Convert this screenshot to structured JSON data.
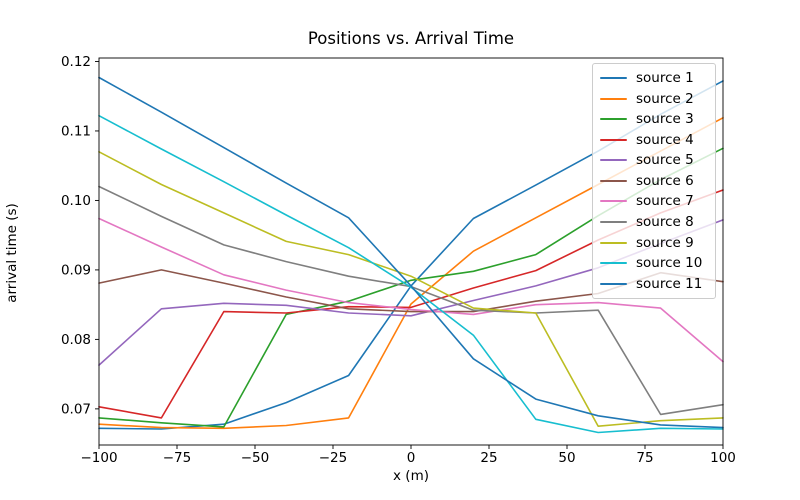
{
  "figure": {
    "title": "Positions vs. Arrival Time",
    "xlabel": "x (m)",
    "ylabel": "arrival time (s)",
    "background": "#ffffff"
  },
  "chart_data": {
    "type": "line",
    "title": "Positions vs. Arrival Time",
    "xlabel": "x (m)",
    "ylabel": "arrival time (s)",
    "grid": false,
    "xlim": [
      -100,
      100
    ],
    "ylim": [
      0.0648,
      0.1205
    ],
    "xticks": {
      "values": [
        -100,
        -75,
        -50,
        -25,
        0,
        25,
        50,
        75,
        100
      ],
      "labels": [
        "−100",
        "−75",
        "−50",
        "−25",
        "0",
        "25",
        "50",
        "75",
        "100"
      ]
    },
    "yticks": {
      "values": [
        0.07,
        0.08,
        0.09,
        0.1,
        0.11,
        0.12
      ],
      "labels": [
        "0.07",
        "0.08",
        "0.09",
        "0.10",
        "0.11",
        "0.12"
      ]
    },
    "legend": {
      "position": "upper right"
    },
    "x": [
      -100,
      -80,
      -60,
      -40,
      -20,
      0,
      20,
      40,
      60,
      80,
      100
    ],
    "series": [
      {
        "name": "source 1",
        "color": "#1f77b4",
        "values": [
          0.0672,
          0.0671,
          0.0678,
          0.0709,
          0.0748,
          0.0877,
          0.0974,
          0.1022,
          0.1071,
          0.1124,
          0.1172
        ]
      },
      {
        "name": "source 2",
        "color": "#ff7f0e",
        "values": [
          0.0678,
          0.0673,
          0.0672,
          0.0676,
          0.0687,
          0.0851,
          0.0927,
          0.0975,
          0.1023,
          0.1071,
          0.1119
        ]
      },
      {
        "name": "source 3",
        "color": "#2ca02c",
        "values": [
          0.0687,
          0.068,
          0.0674,
          0.0836,
          0.0855,
          0.0885,
          0.0898,
          0.0922,
          0.0978,
          0.103,
          0.1075
        ]
      },
      {
        "name": "source 4",
        "color": "#d62728",
        "values": [
          0.0703,
          0.0687,
          0.084,
          0.0838,
          0.0847,
          0.0846,
          0.0874,
          0.0899,
          0.0943,
          0.0982,
          0.1015
        ]
      },
      {
        "name": "source 5",
        "color": "#9467bd",
        "values": [
          0.0763,
          0.0844,
          0.0852,
          0.0849,
          0.0838,
          0.0834,
          0.0856,
          0.0877,
          0.0903,
          0.0938,
          0.0972
        ]
      },
      {
        "name": "source 6",
        "color": "#8c564b",
        "values": [
          0.0881,
          0.09,
          0.0881,
          0.0861,
          0.0844,
          0.084,
          0.084,
          0.0855,
          0.0866,
          0.0896,
          0.0883
        ]
      },
      {
        "name": "source 7",
        "color": "#e377c2",
        "values": [
          0.0974,
          0.0933,
          0.0893,
          0.0871,
          0.0853,
          0.0843,
          0.0836,
          0.085,
          0.0853,
          0.0845,
          0.0768
        ]
      },
      {
        "name": "source 8",
        "color": "#7f7f7f",
        "values": [
          0.102,
          0.0977,
          0.0936,
          0.0912,
          0.0891,
          0.0876,
          0.0842,
          0.0838,
          0.0842,
          0.0692,
          0.0706
        ]
      },
      {
        "name": "source 9",
        "color": "#bcbd22",
        "values": [
          0.107,
          0.1023,
          0.0982,
          0.0941,
          0.0922,
          0.0891,
          0.0845,
          0.0838,
          0.0675,
          0.0683,
          0.0687
        ]
      },
      {
        "name": "source 10",
        "color": "#17becf",
        "values": [
          0.1122,
          0.1074,
          0.1027,
          0.0979,
          0.0932,
          0.0875,
          0.0806,
          0.0685,
          0.0666,
          0.0672,
          0.0671
        ]
      },
      {
        "name": "source 11",
        "color": "#1f77b4",
        "values": [
          0.1177,
          0.1127,
          0.1076,
          0.1025,
          0.0975,
          0.0877,
          0.0772,
          0.0714,
          0.069,
          0.0677,
          0.0673
        ]
      }
    ]
  }
}
